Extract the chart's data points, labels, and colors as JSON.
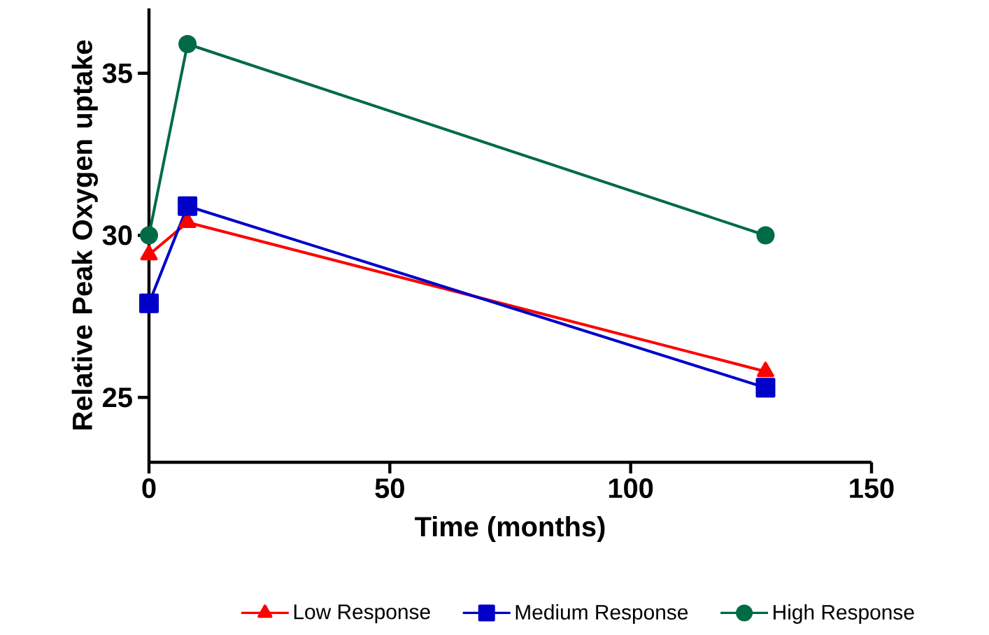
{
  "chart_data": {
    "type": "line",
    "xlabel": "Time (months)",
    "ylabel": "Relative  Peak Oxygen uptake",
    "x": [
      0,
      8,
      128
    ],
    "series": [
      {
        "name": "Low Response",
        "color": "#ff0000",
        "marker": "triangle",
        "values": [
          29.4,
          30.4,
          25.8
        ]
      },
      {
        "name": "Medium Response",
        "color": "#0000c8",
        "marker": "square",
        "values": [
          27.9,
          30.9,
          25.3
        ]
      },
      {
        "name": "High Response",
        "color": "#006b45",
        "marker": "circle",
        "values": [
          30,
          35.9,
          30
        ]
      }
    ],
    "xlim": [
      0,
      150
    ],
    "ylim": [
      23,
      37
    ],
    "xticks": [
      0,
      50,
      100,
      150
    ],
    "yticks": [
      25,
      30,
      35
    ],
    "legend": "bottom"
  }
}
